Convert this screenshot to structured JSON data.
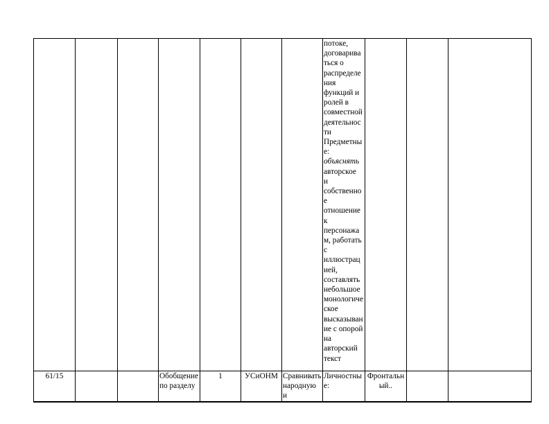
{
  "row1": {
    "col8_lines": [
      "потоке,",
      "договарива",
      "ться о",
      "распределе",
      "ния",
      "функций и",
      "ролей в",
      "совместной",
      "деятельнос",
      "ти",
      "Предметны",
      "е:",
      "объяснять",
      "авторское",
      "и",
      "собственно",
      "е",
      "отношение",
      "к",
      "персонажа",
      "м, работать",
      "с",
      "иллюстрац",
      "ией,",
      "составлять",
      "небольшое",
      "монологиче",
      "ское",
      "высказыван",
      "ие с опорой",
      "на",
      "авторский",
      "текст"
    ]
  },
  "row2": {
    "num": "61/15",
    "topic": "Обобщение по разделу",
    "hours": "1",
    "type": "УСиОНМ",
    "activity": "Сравнивать народную и",
    "results": "Личностны е:",
    "form": "Фронтальн ый.."
  }
}
